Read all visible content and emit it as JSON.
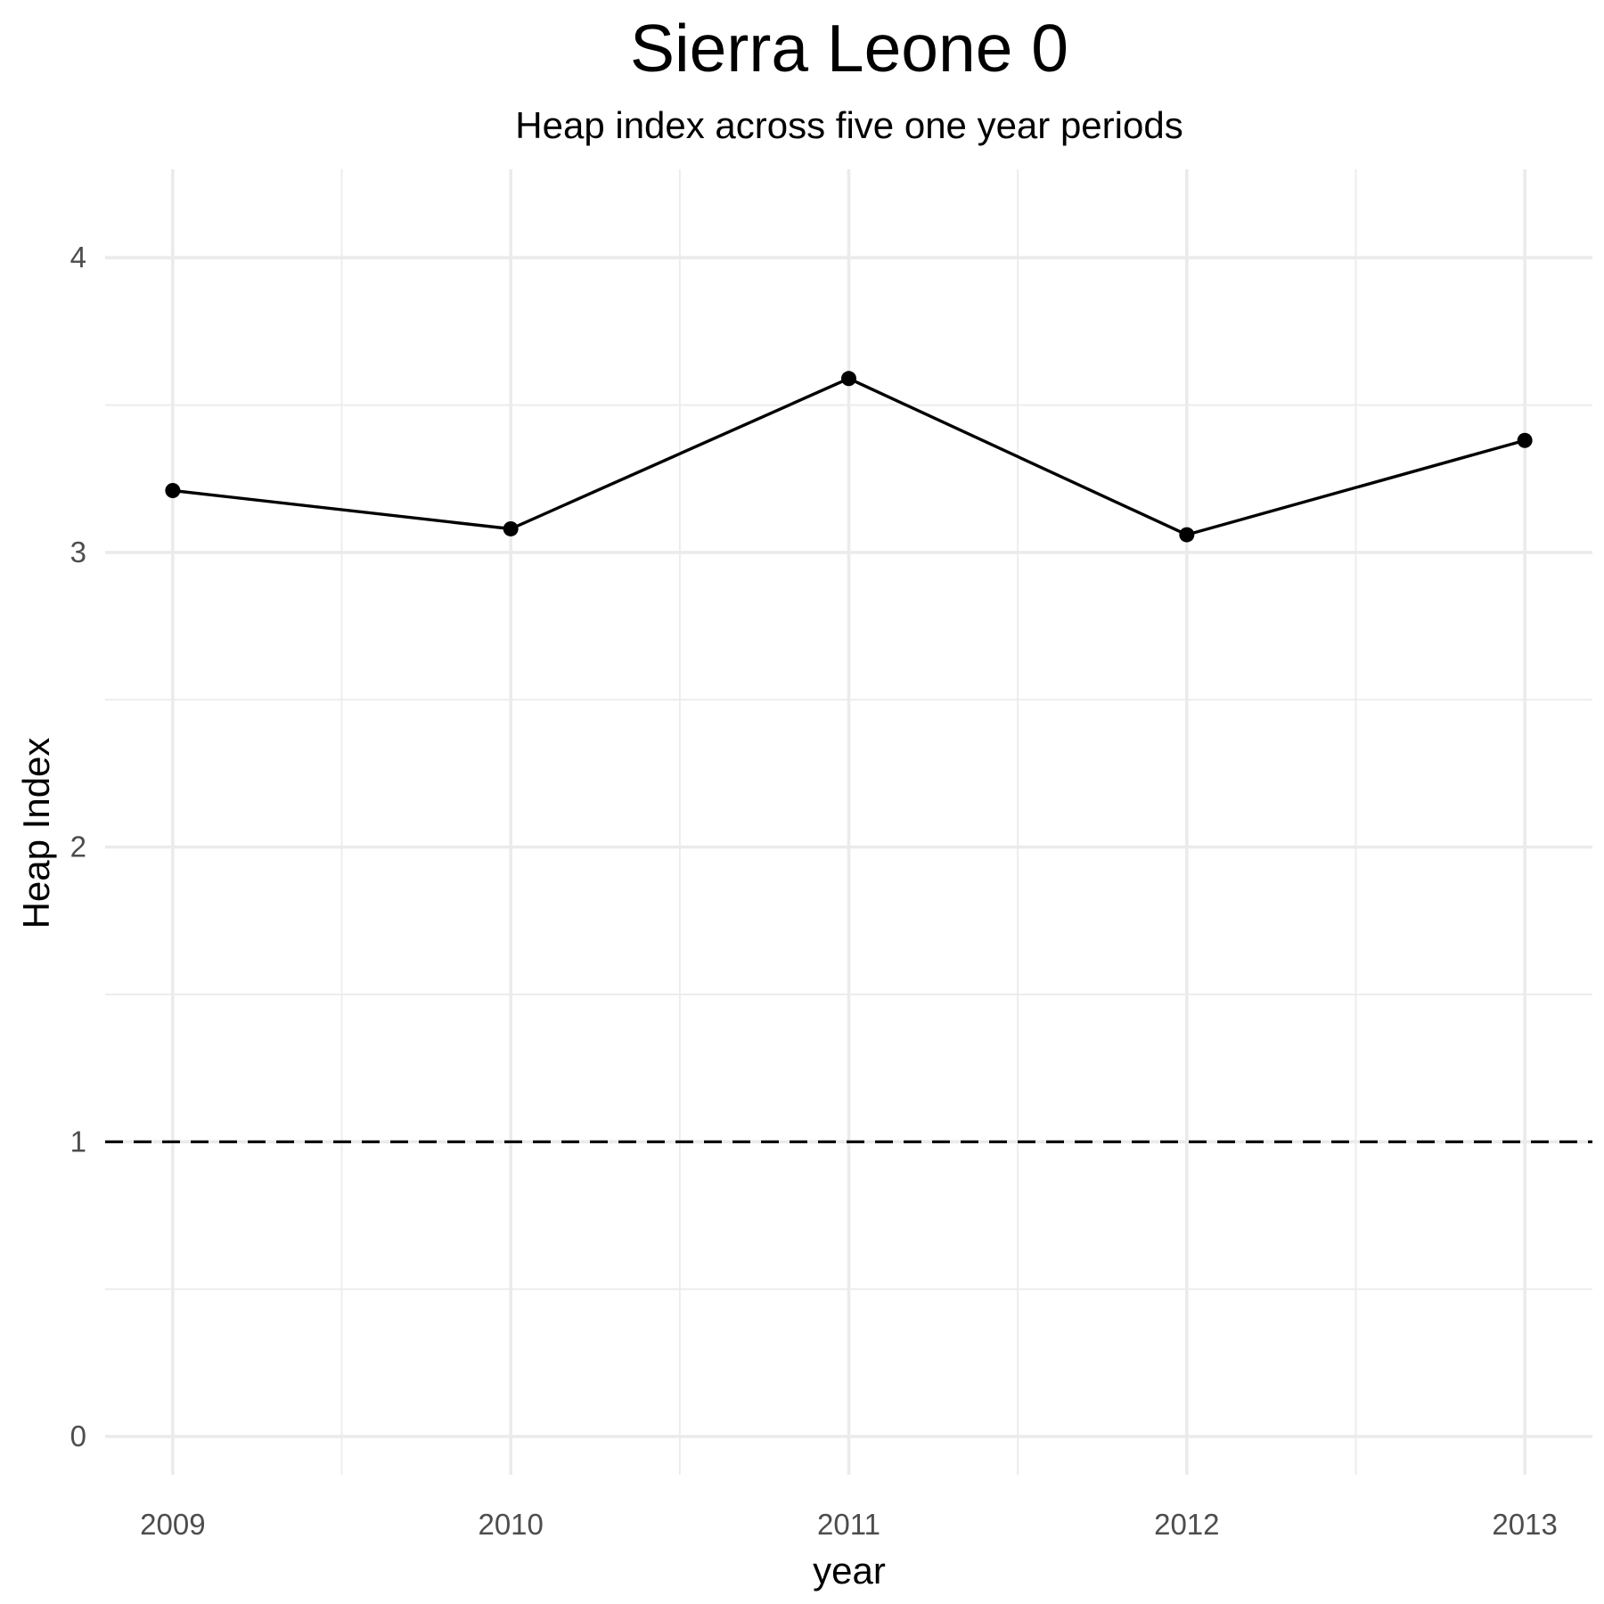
{
  "chart_data": {
    "type": "line",
    "title": "Sierra Leone 0",
    "subtitle": "Heap index across five one year periods",
    "xlabel": "year",
    "ylabel": "Heap Index",
    "x": [
      2009,
      2010,
      2011,
      2012,
      2013
    ],
    "x_tick_labels": [
      "2009",
      "2010",
      "2011",
      "2012",
      "2013"
    ],
    "y_ticks": [
      0,
      1,
      2,
      3,
      4
    ],
    "y_tick_labels": [
      "0",
      "1",
      "2",
      "3",
      "4"
    ],
    "xlim": [
      2008.8,
      2013.2
    ],
    "ylim": [
      -0.13,
      4.3
    ],
    "grid": true,
    "legend": "none",
    "series": [
      {
        "values": [
          3.21,
          3.08,
          3.59,
          3.06,
          3.38
        ],
        "color": "#000000"
      }
    ],
    "reference_lines": [
      {
        "axis": "y",
        "value": 1,
        "style": "dashed",
        "color": "#000000"
      }
    ]
  }
}
